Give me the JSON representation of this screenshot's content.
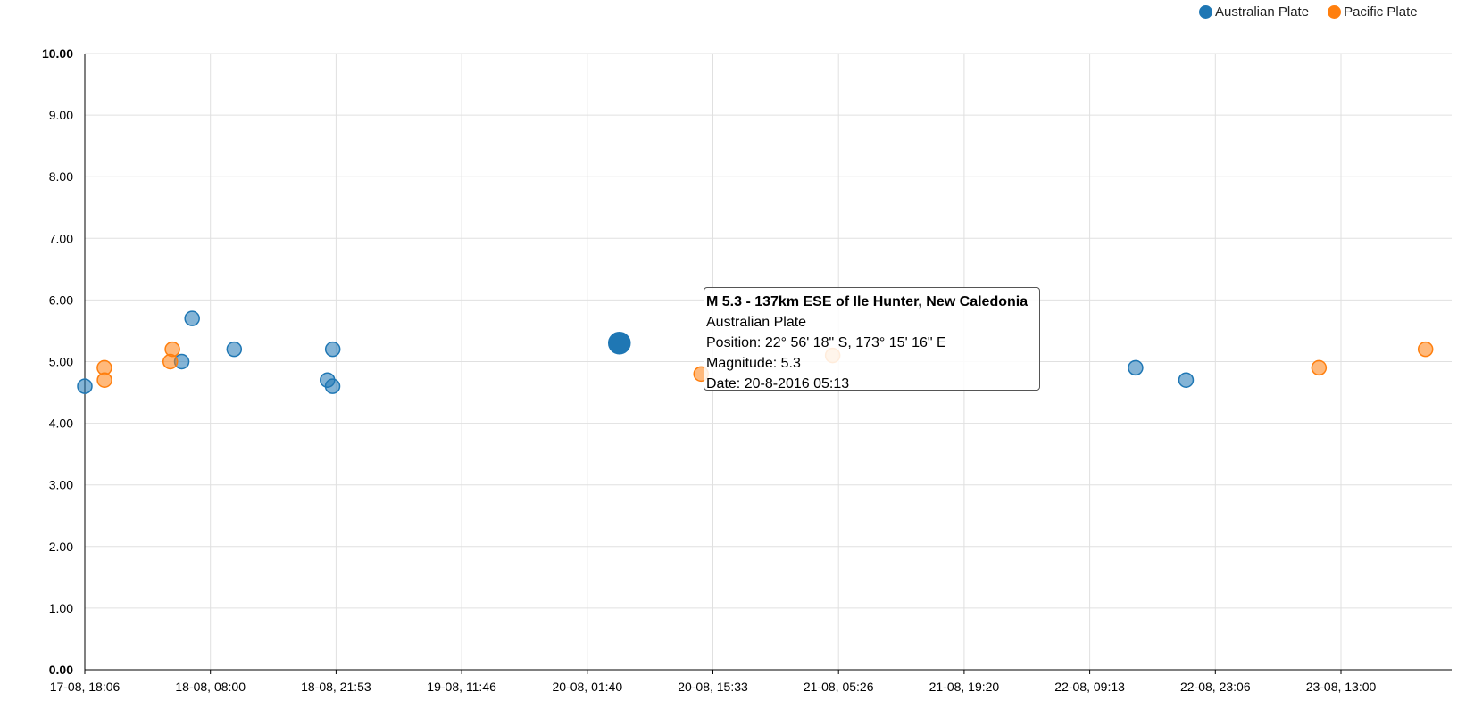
{
  "legend": [
    {
      "name": "Australian Plate",
      "color": "#1f77b4"
    },
    {
      "name": "Pacific Plate",
      "color": "#ff7f0e"
    }
  ],
  "tooltip": {
    "title": "M 5.3 - 137km ESE of Ile Hunter, New Caledonia",
    "plate": "Australian Plate",
    "position": "Position: 22° 56' 18\" S, 173° 15' 16\" E",
    "magnitude": "Magnitude: 5.3",
    "date": "Date: 20-8-2016 05:13"
  },
  "chart_data": {
    "type": "scatter",
    "title": "",
    "xlabel": "",
    "ylabel": "",
    "ylim": [
      0,
      10
    ],
    "yticks": [
      "0.00",
      "1.00",
      "2.00",
      "3.00",
      "4.00",
      "5.00",
      "6.00",
      "7.00",
      "8.00",
      "9.00",
      "10.00"
    ],
    "xticks": [
      "17-08, 18:06",
      "18-08, 08:00",
      "18-08, 21:53",
      "19-08, 11:46",
      "20-08, 01:40",
      "20-08, 15:33",
      "21-08, 05:26",
      "21-08, 19:20",
      "22-08, 09:13",
      "22-08, 23:06",
      "23-08, 13:00"
    ],
    "xlim": [
      "2016-08-17 18:06",
      "2016-08-23 22:22"
    ],
    "grid": true,
    "legend_position": "top-right",
    "highlighted": {
      "series": "Australian Plate",
      "x": "2016-08-20 05:13",
      "y": 5.3
    },
    "series": [
      {
        "name": "Australian Plate",
        "color": "#1f77b4",
        "points": [
          {
            "x": "2016-08-17 18:06",
            "y": 4.6
          },
          {
            "x": "2016-08-18 04:49",
            "y": 5.0
          },
          {
            "x": "2016-08-18 05:58",
            "y": 5.7
          },
          {
            "x": "2016-08-18 10:37",
            "y": 5.2
          },
          {
            "x": "2016-08-18 20:56",
            "y": 4.7
          },
          {
            "x": "2016-08-18 21:30",
            "y": 4.6
          },
          {
            "x": "2016-08-18 21:31",
            "y": 5.2
          },
          {
            "x": "2016-08-20 05:13",
            "y": 5.3
          },
          {
            "x": "2016-08-22 14:18",
            "y": 4.9
          },
          {
            "x": "2016-08-22 19:53",
            "y": 4.7
          }
        ]
      },
      {
        "name": "Pacific Plate",
        "color": "#ff7f0e",
        "points": [
          {
            "x": "2016-08-17 20:16",
            "y": 4.9
          },
          {
            "x": "2016-08-17 20:17",
            "y": 4.7
          },
          {
            "x": "2016-08-18 03:33",
            "y": 5.0
          },
          {
            "x": "2016-08-18 03:47",
            "y": 5.2
          },
          {
            "x": "2016-08-20 14:15",
            "y": 4.8
          },
          {
            "x": "2016-08-21 04:48",
            "y": 5.1
          },
          {
            "x": "2016-08-23 10:35",
            "y": 4.9
          },
          {
            "x": "2016-08-23 22:22",
            "y": 5.2
          }
        ]
      }
    ]
  }
}
